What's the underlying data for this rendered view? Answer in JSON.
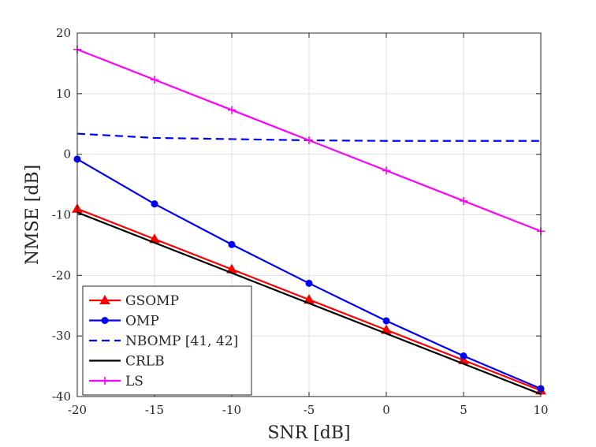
{
  "chart_data": {
    "type": "line",
    "title": "",
    "xlabel": "SNR [dB]",
    "ylabel": "NMSE [dB]",
    "xlim": [
      -20,
      10
    ],
    "ylim": [
      -40,
      20
    ],
    "grid": true,
    "x": [
      -20,
      -15,
      -10,
      -5,
      0,
      5,
      10
    ],
    "xticks": [
      -20,
      -15,
      -10,
      -5,
      0,
      5,
      10
    ],
    "yticks": [
      -40,
      -30,
      -20,
      -10,
      0,
      10,
      20
    ],
    "legend_position": "bottom-left",
    "series": [
      {
        "name": "GSOMP",
        "color": "#ff0000",
        "dash": "solid",
        "marker": "triangle",
        "values": [
          -9,
          -14,
          -19,
          -24,
          -29,
          -34,
          -39
        ]
      },
      {
        "name": "OMP",
        "color": "#0000ff",
        "dash": "solid",
        "marker": "circle",
        "values": [
          -0.8,
          -8.2,
          -14.9,
          -21.3,
          -27.5,
          -33.3,
          -38.7
        ]
      },
      {
        "name": "NBOMP [41, 42]",
        "color": "#0000ff",
        "dash": "dashed",
        "marker": "none",
        "values": [
          3.4,
          2.7,
          2.5,
          2.3,
          2.2,
          2.2,
          2.2
        ]
      },
      {
        "name": "CRLB",
        "color": "#000000",
        "dash": "solid",
        "marker": "none",
        "values": [
          -9.6,
          -14.6,
          -19.6,
          -24.6,
          -29.6,
          -34.6,
          -39.6
        ]
      },
      {
        "name": "LS",
        "color": "#ff00ff",
        "dash": "solid",
        "marker": "plus",
        "values": [
          17.3,
          12.3,
          7.3,
          2.3,
          -2.7,
          -7.7,
          -12.7
        ]
      }
    ]
  }
}
